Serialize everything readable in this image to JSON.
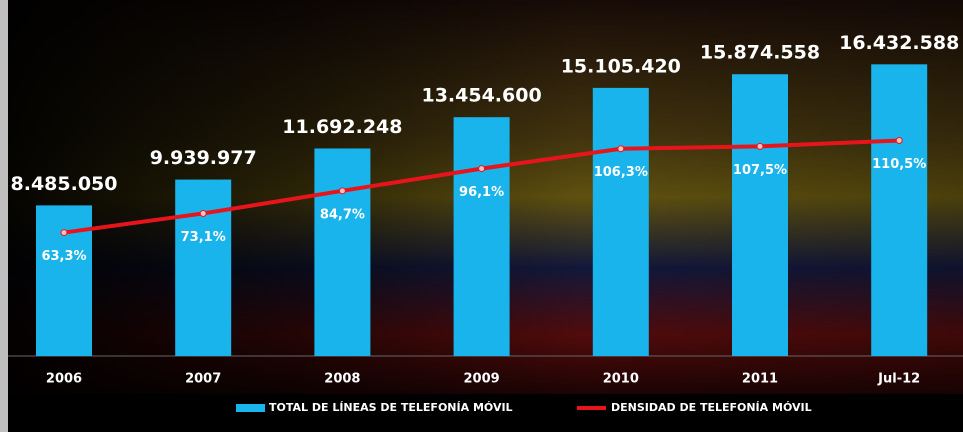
{
  "chart_data": {
    "type": "bar-line",
    "categories": [
      "2006",
      "2007",
      "2008",
      "2009",
      "2010",
      "2011",
      "Jul-12"
    ],
    "series": [
      {
        "name": "TOTAL DE LÍNEAS DE TELEFONÍA MÓVIL",
        "type": "bar",
        "color": "#19b4ec",
        "values": [
          8485050,
          9939977,
          11692248,
          13454600,
          15105420,
          15874558,
          16432588
        ],
        "value_labels": [
          "8.485.050",
          "9.939.977",
          "11.692.248",
          "13.454.600",
          "15.105.420",
          "15.874.558",
          "16.432.588"
        ]
      },
      {
        "name": "DENSIDAD DE TELEFONÍA MÓVIL",
        "type": "line",
        "axis": "y2",
        "color": "#e8141c",
        "values": [
          63.3,
          73.1,
          84.7,
          96.1,
          106.3,
          107.5,
          110.5
        ],
        "value_labels": [
          "63,3%",
          "73,1%",
          "84,7%",
          "96,1%",
          "106,3%",
          "107,5%",
          "110,5%"
        ]
      }
    ],
    "ylim": [
      0,
      20000000
    ],
    "y2lim": [
      0,
      180
    ]
  }
}
